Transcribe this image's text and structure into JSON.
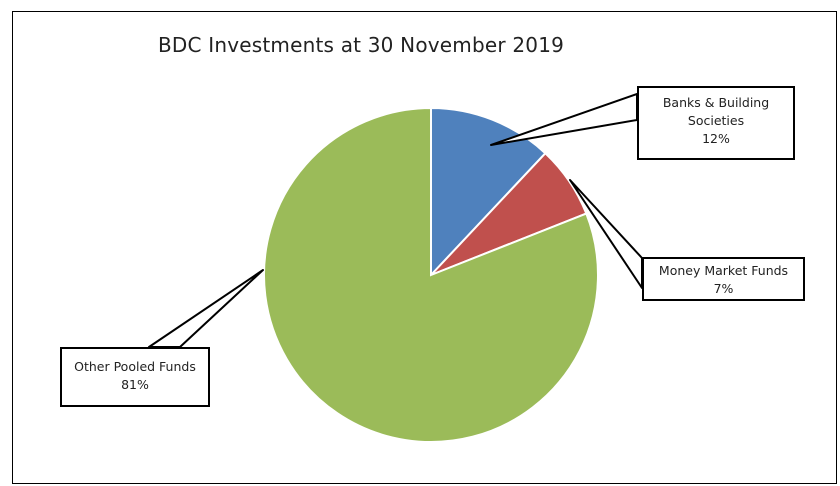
{
  "chart_data": {
    "type": "pie",
    "title": "BDC Investments at 30 November 2019",
    "slices": [
      {
        "label": "Banks & Building Societies",
        "value": 12,
        "value_label": "12%",
        "color": "#4F81BD"
      },
      {
        "label": "Money Market Funds",
        "value": 7,
        "value_label": "7%",
        "color": "#C0504D"
      },
      {
        "label": "Other Pooled Funds",
        "value": 81,
        "value_label": "81%",
        "color": "#9BBB59"
      }
    ],
    "start_angle": "12 o'clock",
    "direction": "clockwise",
    "legend": "none",
    "data_labels": "callouts"
  }
}
